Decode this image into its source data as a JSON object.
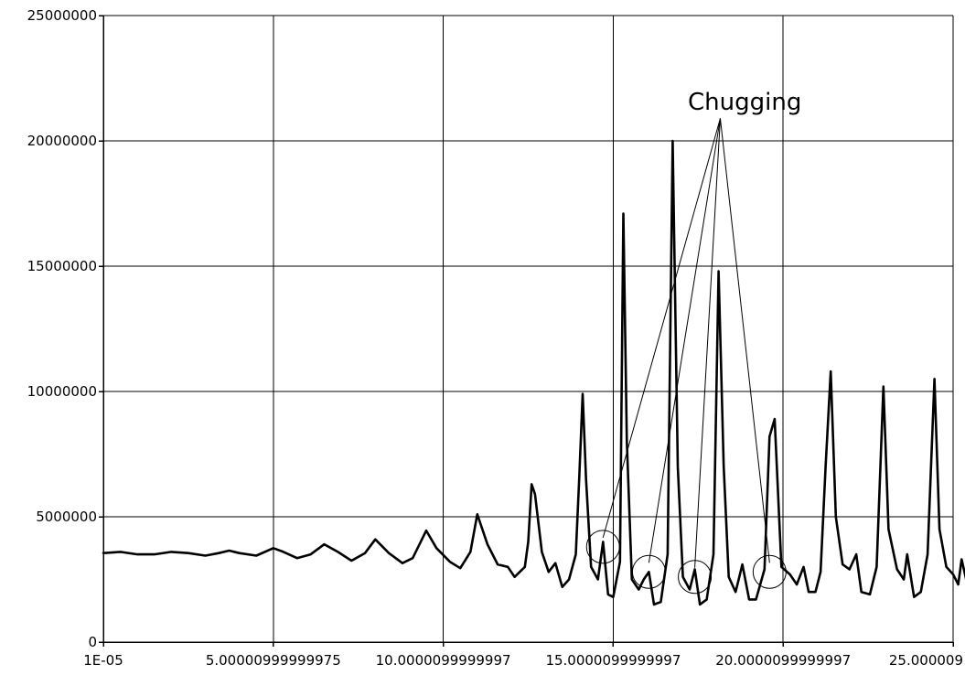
{
  "chart_data": {
    "type": "line",
    "title": "",
    "xlabel": "",
    "ylabel": "",
    "grid": true,
    "xlim": [
      1e-05,
      25.00001
    ],
    "ylim": [
      0,
      25000000
    ],
    "x_tick_values": [
      1e-05,
      5.00001,
      10.00001,
      15.00001,
      20.00001,
      25.00001
    ],
    "x_tick_labels": [
      "1E-05",
      "5.00000999999975",
      "10.0000099999997",
      "15.0000099999997",
      "20.0000099999997",
      "25.000009"
    ],
    "y_tick_values": [
      0,
      5000000,
      10000000,
      15000000,
      20000000,
      25000000
    ],
    "y_tick_labels": [
      "0",
      "5000000",
      "10000000",
      "15000000",
      "20000000",
      "25000000"
    ],
    "series": [
      {
        "color": "#000000",
        "points": [
          [
            0.0,
            3550000
          ],
          [
            0.5,
            3600000
          ],
          [
            1.0,
            3500000
          ],
          [
            1.5,
            3500000
          ],
          [
            2.0,
            3600000
          ],
          [
            2.5,
            3550000
          ],
          [
            3.0,
            3450000
          ],
          [
            3.4,
            3550000
          ],
          [
            3.7,
            3650000
          ],
          [
            4.0,
            3550000
          ],
          [
            4.5,
            3450000
          ],
          [
            5.0,
            3750000
          ],
          [
            5.3,
            3600000
          ],
          [
            5.7,
            3350000
          ],
          [
            6.1,
            3500000
          ],
          [
            6.5,
            3900000
          ],
          [
            6.9,
            3600000
          ],
          [
            7.3,
            3250000
          ],
          [
            7.7,
            3550000
          ],
          [
            8.0,
            4100000
          ],
          [
            8.4,
            3550000
          ],
          [
            8.8,
            3150000
          ],
          [
            9.1,
            3350000
          ],
          [
            9.5,
            4450000
          ],
          [
            9.8,
            3750000
          ],
          [
            10.2,
            3200000
          ],
          [
            10.5,
            2950000
          ],
          [
            10.8,
            3600000
          ],
          [
            11.0,
            5100000
          ],
          [
            11.3,
            3900000
          ],
          [
            11.6,
            3100000
          ],
          [
            11.9,
            3000000
          ],
          [
            12.1,
            2600000
          ],
          [
            12.4,
            3000000
          ],
          [
            12.5,
            4000000
          ],
          [
            12.6,
            6300000
          ],
          [
            12.7,
            5900000
          ],
          [
            12.9,
            3600000
          ],
          [
            13.1,
            2800000
          ],
          [
            13.3,
            3150000
          ],
          [
            13.5,
            2200000
          ],
          [
            13.7,
            2500000
          ],
          [
            13.9,
            3500000
          ],
          [
            14.0,
            6500000
          ],
          [
            14.1,
            9900000
          ],
          [
            14.2,
            6500000
          ],
          [
            14.35,
            3000000
          ],
          [
            14.55,
            2500000
          ],
          [
            14.7,
            4000000
          ],
          [
            14.85,
            1900000
          ],
          [
            15.0,
            1800000
          ],
          [
            15.2,
            3200000
          ],
          [
            15.3,
            17100000
          ],
          [
            15.4,
            8000000
          ],
          [
            15.55,
            2500000
          ],
          [
            15.75,
            2100000
          ],
          [
            15.9,
            2500000
          ],
          [
            16.05,
            2800000
          ],
          [
            16.2,
            1500000
          ],
          [
            16.4,
            1600000
          ],
          [
            16.6,
            3500000
          ],
          [
            16.75,
            20000000
          ],
          [
            16.9,
            7000000
          ],
          [
            17.05,
            2600000
          ],
          [
            17.25,
            2100000
          ],
          [
            17.4,
            2900000
          ],
          [
            17.55,
            1500000
          ],
          [
            17.75,
            1700000
          ],
          [
            17.95,
            3500000
          ],
          [
            18.1,
            14800000
          ],
          [
            18.25,
            7000000
          ],
          [
            18.4,
            2600000
          ],
          [
            18.6,
            2000000
          ],
          [
            18.8,
            3100000
          ],
          [
            19.0,
            1700000
          ],
          [
            19.2,
            1700000
          ],
          [
            19.45,
            2900000
          ],
          [
            19.6,
            8200000
          ],
          [
            19.75,
            8900000
          ],
          [
            19.95,
            3000000
          ],
          [
            20.2,
            2700000
          ],
          [
            20.4,
            2300000
          ],
          [
            20.6,
            3000000
          ],
          [
            20.75,
            2000000
          ],
          [
            20.95,
            2000000
          ],
          [
            21.1,
            2800000
          ],
          [
            21.25,
            7000000
          ],
          [
            21.4,
            10800000
          ],
          [
            21.55,
            5000000
          ],
          [
            21.75,
            3100000
          ],
          [
            21.95,
            2900000
          ],
          [
            22.15,
            3500000
          ],
          [
            22.3,
            2000000
          ],
          [
            22.55,
            1900000
          ],
          [
            22.75,
            3000000
          ],
          [
            22.95,
            10200000
          ],
          [
            23.1,
            4500000
          ],
          [
            23.35,
            2900000
          ],
          [
            23.55,
            2500000
          ],
          [
            23.65,
            3500000
          ],
          [
            23.85,
            1800000
          ],
          [
            24.05,
            2000000
          ],
          [
            24.25,
            3500000
          ],
          [
            24.45,
            10500000
          ],
          [
            24.6,
            4500000
          ],
          [
            24.8,
            3000000
          ],
          [
            25.0,
            2700000
          ],
          [
            25.15,
            2300000
          ],
          [
            25.25,
            3300000
          ],
          [
            25.5,
            1800000
          ]
        ]
      }
    ],
    "annotations": [
      {
        "text": "Chugging",
        "anchor": [
          18.15,
          20900000
        ],
        "circled_points": [
          [
            14.7,
            3800000
          ],
          [
            16.05,
            2800000
          ],
          [
            17.4,
            2600000
          ],
          [
            19.6,
            2800000
          ]
        ]
      }
    ]
  }
}
